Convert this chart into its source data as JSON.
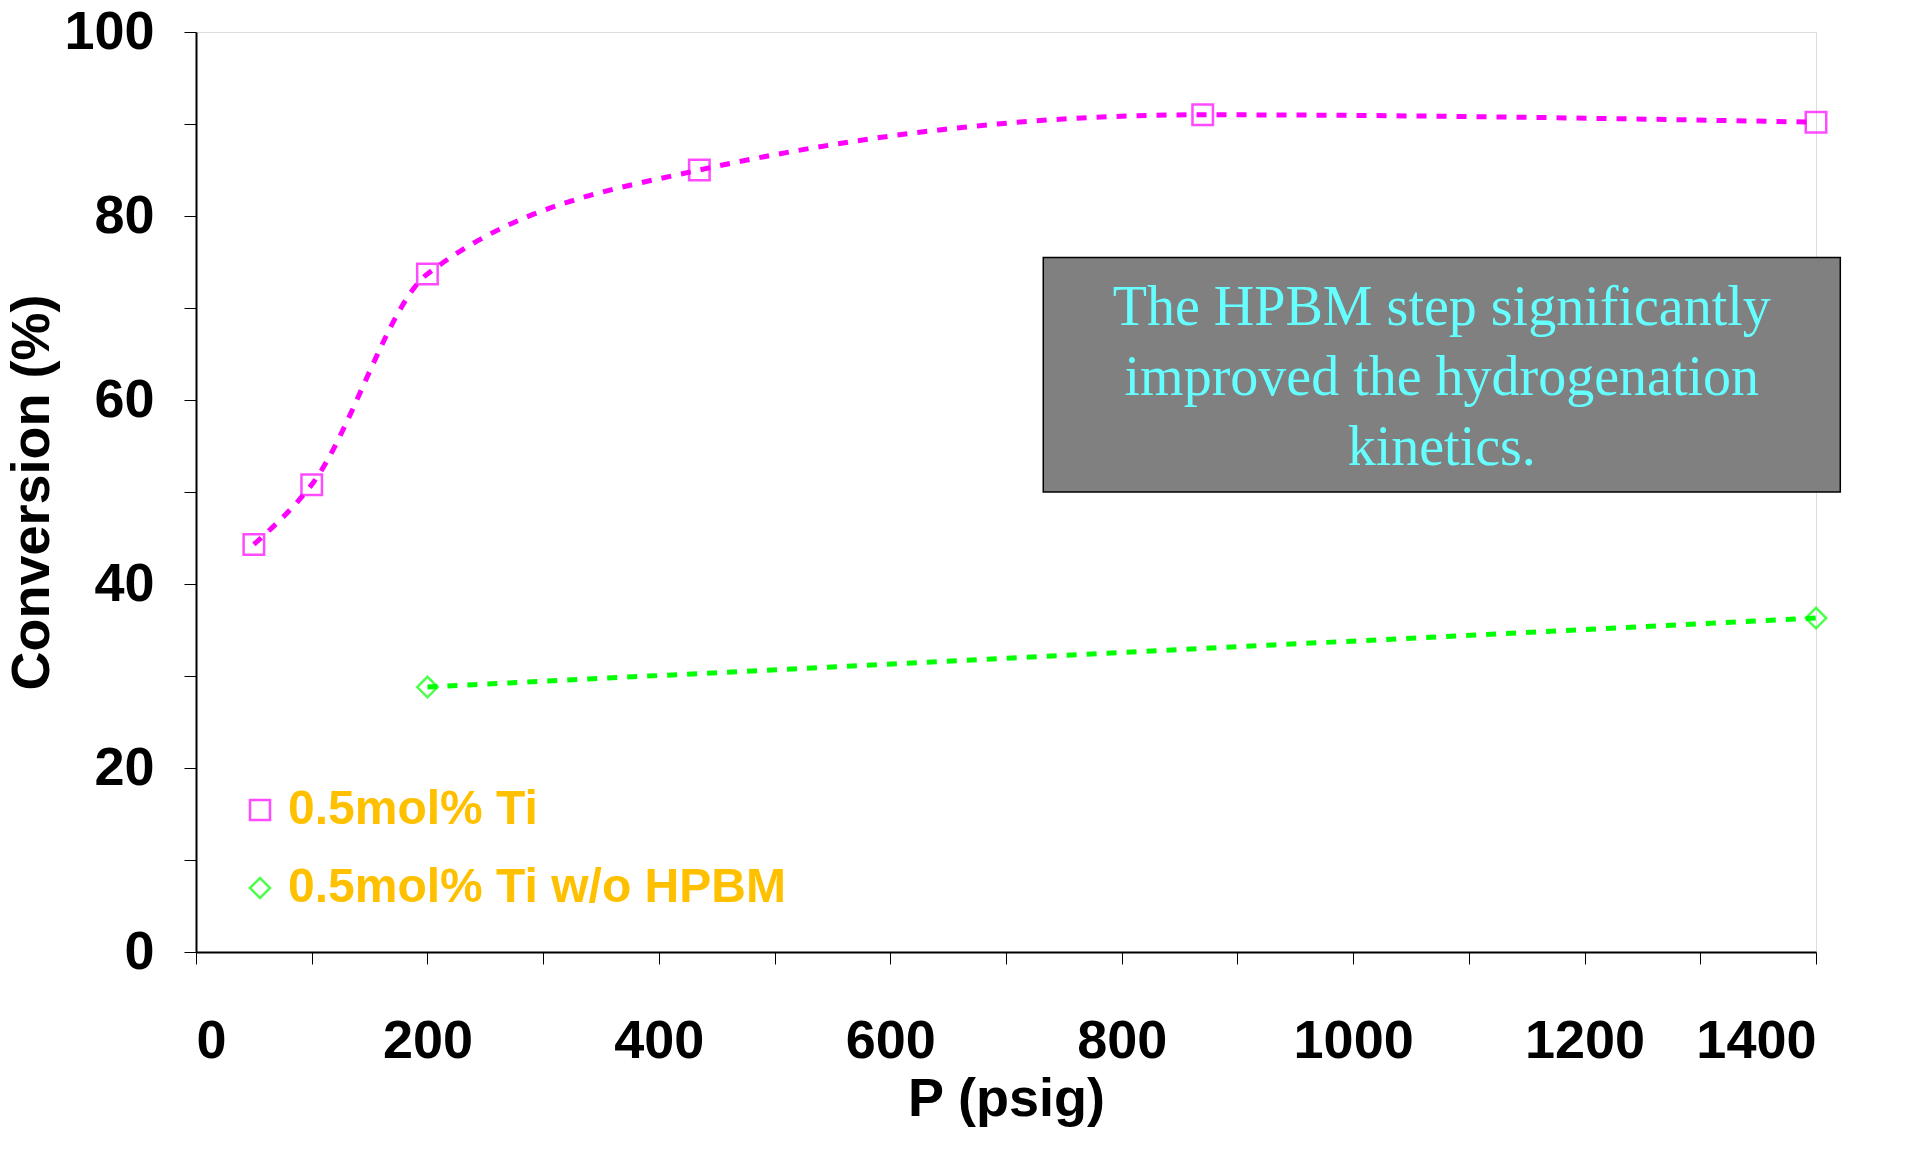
{
  "chart_data": {
    "type": "line",
    "xlabel": "P (psig)",
    "ylabel": "Conversion (%)",
    "xlim": [
      0,
      1400
    ],
    "xticks": [
      0,
      {
        "value": 100,
        "label": null
      },
      200,
      {
        "value": 300,
        "label": null
      },
      400,
      {
        "value": 500,
        "label": null
      },
      600,
      {
        "value": 700,
        "label": null
      },
      800,
      {
        "value": 900,
        "label": null
      },
      1000,
      {
        "value": 1100,
        "label": null
      },
      1200,
      {
        "value": 1300,
        "label": null
      },
      1400
    ],
    "ylim": [
      0,
      100
    ],
    "yticks": [
      0,
      {
        "value": 10,
        "label": null
      },
      20,
      {
        "value": 30,
        "label": null
      },
      40,
      {
        "value": 50,
        "label": null
      },
      60,
      {
        "value": 70,
        "label": null
      },
      80,
      {
        "value": 90,
        "label": null
      },
      100
    ],
    "grid": false,
    "legend": "bottom left",
    "line_style": "dashed",
    "annotations": [
      "The HPBM step significantly improved the hydrogenation kinetics."
    ],
    "series": [
      {
        "name": "0.5mol% Ti",
        "color": "#ff00ff",
        "marker": "square",
        "x": [
          50,
          100,
          200,
          435,
          870,
          1400
        ],
        "values": [
          44.3,
          50.8,
          73.7,
          85,
          91,
          90.2
        ]
      },
      {
        "name": "0.5mol% Ti w/o HPBM",
        "color": "#00ff00",
        "marker": "diamond",
        "x": [
          200,
          1400
        ],
        "values": [
          28.8,
          36.3
        ]
      }
    ]
  }
}
